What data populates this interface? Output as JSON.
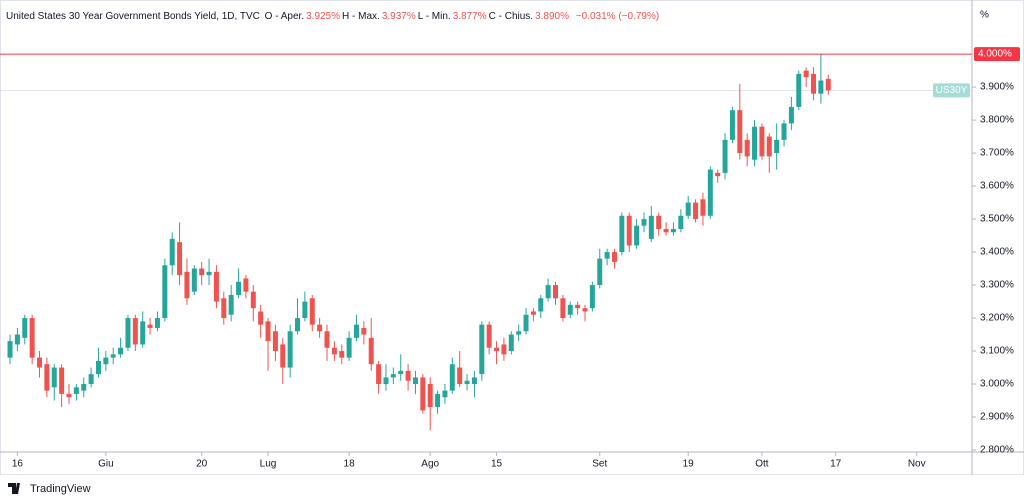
{
  "header": {
    "symbol": "United States 30 Year Government Bonds Yield, 1D, TVC",
    "ohlc": [
      {
        "label": "O - Aper.",
        "value": "3.925%"
      },
      {
        "label": "H - Max.",
        "value": "3.937%"
      },
      {
        "label": "L - Min.",
        "value": "3.877%"
      },
      {
        "label": "C - Chius.",
        "value": "3.890%"
      }
    ],
    "change": "−0.031% (−0.79%)"
  },
  "footer": {
    "brand": "TradingView"
  },
  "chart_data": {
    "type": "candlestick",
    "y_unit": "%",
    "symbol_label": "US30Y",
    "up_color": "#26a69a",
    "down_color": "#ef5350",
    "xlim": [
      -1.36,
      130.5
    ],
    "ylim": [
      2.794,
      4.164
    ],
    "xticks": [
      {
        "value": 1,
        "label": "16"
      },
      {
        "value": 13,
        "label": "Giu"
      },
      {
        "value": 26,
        "label": "20"
      },
      {
        "value": 35,
        "label": "Lug"
      },
      {
        "value": 46,
        "label": "18"
      },
      {
        "value": 57,
        "label": "Ago"
      },
      {
        "value": 66,
        "label": "15"
      },
      {
        "value": 80,
        "label": "Set"
      },
      {
        "value": 92,
        "label": "19"
      },
      {
        "value": 102,
        "label": "Ott"
      },
      {
        "value": 112,
        "label": "17"
      },
      {
        "value": 123,
        "label": "Nov"
      }
    ],
    "yticks": [
      {
        "value": 2.8,
        "label": "2.800%"
      },
      {
        "value": 2.9,
        "label": "2.900%"
      },
      {
        "value": 3.0,
        "label": "3.000%"
      },
      {
        "value": 3.1,
        "label": "3.100%"
      },
      {
        "value": 3.2,
        "label": "3.200%"
      },
      {
        "value": 3.3,
        "label": "3.300%"
      },
      {
        "value": 3.4,
        "label": "3.400%"
      },
      {
        "value": 3.5,
        "label": "3.500%"
      },
      {
        "value": 3.6,
        "label": "3.600%"
      },
      {
        "value": 3.7,
        "label": "3.700%"
      },
      {
        "value": 3.8,
        "label": "3.800%"
      },
      {
        "value": 3.9,
        "label": "3.900%"
      }
    ],
    "price_line": {
      "value": 4.0,
      "label": "4.000%",
      "color": "#f23645"
    },
    "open": [
      3.08,
      3.12,
      3.14,
      3.2,
      3.08,
      3.06,
      2.99,
      3.05,
      2.97,
      2.97,
      2.98,
      3.0,
      3.03,
      3.06,
      3.08,
      3.09,
      3.11,
      3.2,
      3.12,
      3.18,
      3.17,
      3.2,
      3.36,
      3.43,
      3.34,
      3.28,
      3.35,
      3.33,
      3.34,
      3.26,
      3.21,
      3.27,
      3.32,
      3.28,
      3.22,
      3.19,
      3.16,
      3.12,
      3.05,
      3.16,
      3.2,
      3.26,
      3.18,
      3.16,
      3.11,
      3.1,
      3.08,
      3.14,
      3.17,
      3.14,
      3.06,
      3.0,
      3.02,
      3.03,
      3.04,
      3.0,
      3.02,
      3.0,
      2.93,
      2.96,
      2.98,
      3.05,
      3.0,
      3.0,
      3.03,
      3.18,
      3.11,
      3.12,
      3.1,
      3.15,
      3.16,
      3.22,
      3.22,
      3.26,
      3.3,
      3.26,
      3.21,
      3.24,
      3.23,
      3.23,
      3.3,
      3.38,
      3.4,
      3.4,
      3.51,
      3.42,
      3.48,
      3.44,
      3.51,
      3.47,
      3.46,
      3.47,
      3.51,
      3.55,
      3.56,
      3.51,
      3.64,
      3.64,
      3.74,
      3.83,
      3.74,
      3.68,
      3.78,
      3.75,
      3.7,
      3.74,
      3.79,
      3.84,
      3.95,
      3.94,
      3.88,
      3.925
    ],
    "high": [
      3.15,
      3.17,
      3.21,
      3.21,
      3.1,
      3.08,
      3.06,
      3.06,
      3.0,
      3.0,
      3.02,
      3.05,
      3.11,
      3.1,
      3.11,
      3.14,
      3.21,
      3.21,
      3.22,
      3.2,
      3.22,
      3.38,
      3.46,
      3.49,
      3.38,
      3.36,
      3.37,
      3.38,
      3.36,
      3.28,
      3.3,
      3.35,
      3.33,
      3.3,
      3.24,
      3.2,
      3.18,
      3.14,
      3.18,
      3.26,
      3.28,
      3.27,
      3.2,
      3.18,
      3.13,
      3.12,
      3.16,
      3.21,
      3.19,
      3.2,
      3.07,
      3.06,
      3.05,
      3.09,
      3.06,
      3.04,
      3.03,
      3.02,
      2.98,
      3.0,
      3.08,
      3.1,
      3.03,
      3.04,
      3.19,
      3.19,
      3.13,
      3.14,
      3.16,
      3.18,
      3.23,
      3.23,
      3.27,
      3.32,
      3.31,
      3.27,
      3.25,
      3.25,
      3.24,
      3.31,
      3.41,
      3.41,
      3.41,
      3.52,
      3.52,
      3.5,
      3.52,
      3.54,
      3.52,
      3.49,
      3.49,
      3.53,
      3.57,
      3.56,
      3.58,
      3.66,
      3.65,
      3.76,
      3.84,
      3.91,
      3.76,
      3.8,
      3.79,
      3.76,
      3.79,
      3.8,
      3.87,
      3.95,
      3.96,
      3.96,
      4.0,
      3.937
    ],
    "low": [
      3.06,
      3.1,
      3.12,
      3.06,
      3.02,
      2.96,
      2.95,
      2.93,
      2.94,
      2.95,
      2.96,
      2.99,
      3.02,
      3.04,
      3.06,
      3.08,
      3.1,
      3.1,
      3.11,
      3.15,
      3.16,
      3.19,
      3.33,
      3.3,
      3.24,
      3.27,
      3.3,
      3.3,
      3.23,
      3.18,
      3.19,
      3.26,
      3.26,
      3.19,
      3.14,
      3.04,
      3.07,
      3.0,
      3.02,
      3.15,
      3.19,
      3.16,
      3.14,
      3.07,
      3.07,
      3.06,
      3.07,
      3.13,
      3.12,
      3.04,
      2.97,
      2.98,
      3.0,
      3.01,
      2.98,
      2.97,
      2.91,
      2.86,
      2.91,
      2.94,
      2.97,
      2.99,
      2.98,
      2.96,
      3.01,
      3.09,
      3.06,
      3.07,
      3.09,
      3.13,
      3.15,
      3.19,
      3.2,
      3.25,
      3.24,
      3.19,
      3.2,
      3.21,
      3.19,
      3.22,
      3.29,
      3.36,
      3.35,
      3.39,
      3.4,
      3.41,
      3.46,
      3.43,
      3.45,
      3.45,
      3.45,
      3.46,
      3.5,
      3.49,
      3.48,
      3.5,
      3.61,
      3.62,
      3.73,
      3.68,
      3.66,
      3.66,
      3.68,
      3.64,
      3.65,
      3.72,
      3.77,
      3.83,
      3.9,
      3.86,
      3.85,
      3.877
    ],
    "close": [
      3.13,
      3.15,
      3.2,
      3.08,
      3.05,
      2.98,
      3.05,
      2.97,
      2.96,
      2.99,
      3.0,
      3.03,
      3.07,
      3.08,
      3.09,
      3.11,
      3.2,
      3.12,
      3.19,
      3.17,
      3.2,
      3.36,
      3.44,
      3.33,
      3.26,
      3.35,
      3.33,
      3.34,
      3.25,
      3.2,
      3.27,
      3.31,
      3.28,
      3.23,
      3.18,
      3.13,
      3.1,
      3.05,
      3.16,
      3.2,
      3.25,
      3.18,
      3.16,
      3.11,
      3.09,
      3.08,
      3.14,
      3.18,
      3.15,
      3.06,
      3.0,
      3.02,
      3.03,
      3.04,
      3.01,
      3.02,
      2.92,
      2.93,
      2.97,
      2.98,
      3.06,
      3.0,
      3.01,
      3.02,
      3.18,
      3.11,
      3.1,
      3.09,
      3.15,
      3.16,
      3.21,
      3.21,
      3.26,
      3.3,
      3.26,
      3.2,
      3.24,
      3.23,
      3.22,
      3.3,
      3.38,
      3.4,
      3.37,
      3.51,
      3.42,
      3.48,
      3.5,
      3.51,
      3.47,
      3.46,
      3.47,
      3.51,
      3.55,
      3.5,
      3.51,
      3.65,
      3.63,
      3.74,
      3.83,
      3.7,
      3.69,
      3.78,
      3.69,
      3.69,
      3.74,
      3.79,
      3.84,
      3.94,
      3.93,
      3.88,
      3.92,
      3.89
    ]
  }
}
